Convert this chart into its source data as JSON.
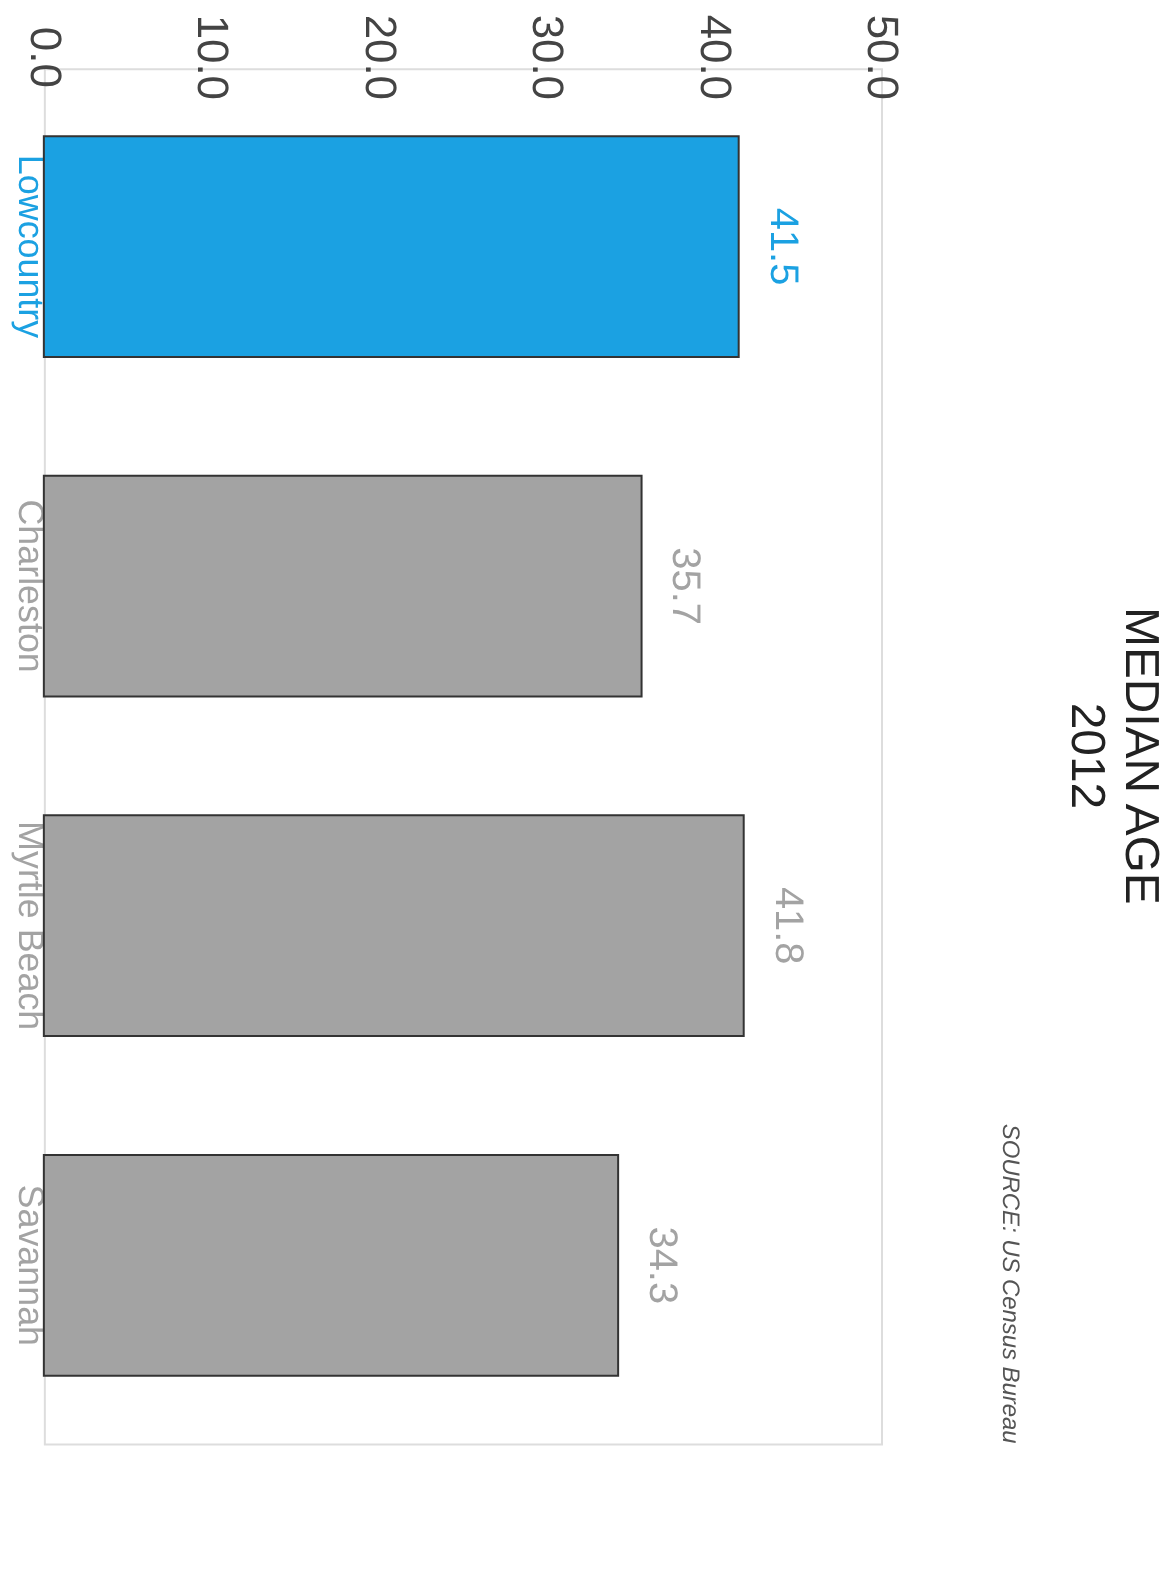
{
  "chart_data": {
    "type": "bar",
    "orientation": "horizontal",
    "title": "MEDIAN AGE",
    "subtitle": "2012",
    "categories": [
      "Lowcountry",
      "Charleston",
      "Myrtle Beach",
      "Savannah"
    ],
    "values": [
      41.5,
      35.7,
      41.8,
      34.3
    ],
    "colors": [
      "#1ba1e2",
      "#a3a3a3",
      "#a3a3a3",
      "#a3a3a3"
    ],
    "xlim": [
      0,
      50
    ],
    "xticks": [
      {
        "value": 0,
        "label": "0.0"
      },
      {
        "value": 10,
        "label": "10.0"
      },
      {
        "value": 20,
        "label": "20.0"
      },
      {
        "value": 30,
        "label": "30.0"
      },
      {
        "value": 40,
        "label": "40.0"
      },
      {
        "value": 50,
        "label": "50.0"
      }
    ],
    "data_labels": true,
    "grid": false,
    "annotations": [
      "SOURCE: US Census Bureau"
    ]
  }
}
